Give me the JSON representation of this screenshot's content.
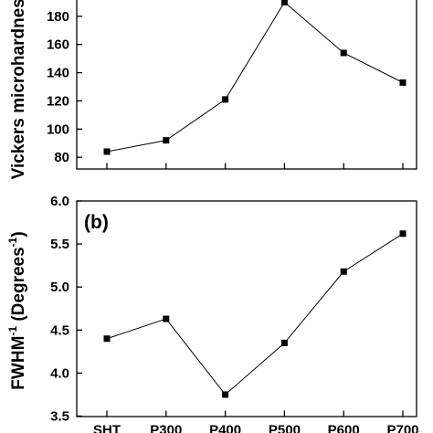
{
  "chart_data": [
    {
      "type": "line",
      "panel_label": "",
      "ylabel": "Vickers microhardness",
      "categories": [
        "SHT",
        "P300",
        "P400",
        "P500",
        "P600",
        "P700"
      ],
      "values": [
        84,
        92,
        121,
        190,
        154,
        133
      ],
      "ylim": [
        72,
        188
      ],
      "yticks": [
        "80",
        "100",
        "120",
        "140",
        "160",
        "180"
      ],
      "ytick_values": [
        80,
        100,
        120,
        140,
        160,
        180
      ],
      "grid": false,
      "legend": "none"
    },
    {
      "type": "line",
      "panel_label": "(b)",
      "ylabel": "FWHM",
      "ylabel_sup": "-1",
      "ylabel_unit": " (Degrees",
      "ylabel_unit_sup": "-1",
      "ylabel_close": ")",
      "categories": [
        "SHT",
        "P300",
        "P400",
        "P500",
        "P600",
        "P700"
      ],
      "xticks": [
        "SHT",
        "P300",
        "P400",
        "P500",
        "P600",
        "P700"
      ],
      "values": [
        4.4,
        4.63,
        3.75,
        4.35,
        5.18,
        5.62
      ],
      "ylim": [
        3.5,
        6.0
      ],
      "yticks": [
        "3.5",
        "4.0",
        "4.5",
        "5.0",
        "5.5",
        "6.0"
      ],
      "ytick_values": [
        3.5,
        4.0,
        4.5,
        5.0,
        5.5,
        6.0
      ],
      "grid": false,
      "legend": "none"
    }
  ]
}
